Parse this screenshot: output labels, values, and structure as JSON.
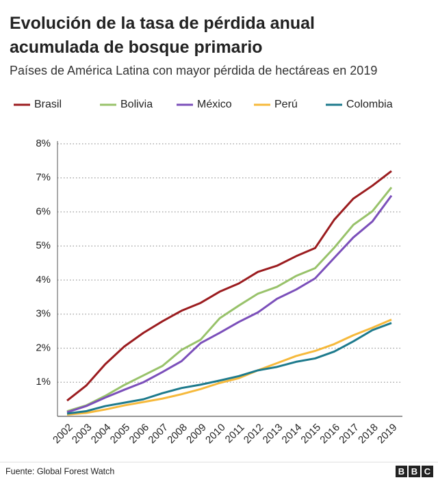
{
  "chart_data": {
    "type": "line",
    "title": "Evolución de la tasa de pérdida anual acumulada de bosque primario",
    "subtitle": "Países de América Latina con mayor pérdida de hectáreas en 2019",
    "categories": [
      "2002",
      "2003",
      "2004",
      "2005",
      "2006",
      "2007",
      "2008",
      "2009",
      "2010",
      "2011",
      "2012",
      "2013",
      "2014",
      "2015",
      "2016",
      "2017",
      "2018",
      "2019"
    ],
    "series": [
      {
        "name": "Brasil",
        "color": "#9b1c1f",
        "values": [
          0.46,
          0.9,
          1.53,
          2.05,
          2.45,
          2.79,
          3.1,
          3.33,
          3.66,
          3.9,
          4.24,
          4.42,
          4.7,
          4.94,
          5.77,
          6.39,
          6.77,
          7.2
        ]
      },
      {
        "name": "Bolivia",
        "color": "#98c26a",
        "values": [
          0.15,
          0.32,
          0.6,
          0.92,
          1.2,
          1.48,
          1.95,
          2.25,
          2.88,
          3.25,
          3.6,
          3.8,
          4.12,
          4.35,
          4.95,
          5.62,
          6.02,
          6.72
        ]
      },
      {
        "name": "México",
        "color": "#7b4fba",
        "values": [
          0.12,
          0.3,
          0.55,
          0.78,
          1.0,
          1.3,
          1.62,
          2.15,
          2.45,
          2.77,
          3.05,
          3.45,
          3.72,
          4.05,
          4.65,
          5.25,
          5.72,
          6.48
        ]
      },
      {
        "name": "Perú",
        "color": "#f6b93b",
        "values": [
          0.05,
          0.1,
          0.2,
          0.32,
          0.42,
          0.52,
          0.65,
          0.8,
          0.98,
          1.12,
          1.35,
          1.56,
          1.77,
          1.92,
          2.12,
          2.38,
          2.6,
          2.84
        ]
      },
      {
        "name": "Colombia",
        "color": "#1d7a8c",
        "values": [
          0.08,
          0.15,
          0.3,
          0.4,
          0.5,
          0.68,
          0.83,
          0.93,
          1.05,
          1.18,
          1.35,
          1.45,
          1.6,
          1.7,
          1.9,
          2.2,
          2.53,
          2.74
        ]
      }
    ],
    "ylim": [
      0,
      8
    ],
    "yticks": [
      {
        "value": 1,
        "label": "1%"
      },
      {
        "value": 2,
        "label": "2%"
      },
      {
        "value": 3,
        "label": "3%"
      },
      {
        "value": 4,
        "label": "4%"
      },
      {
        "value": 5,
        "label": "5%"
      },
      {
        "value": 6,
        "label": "6%"
      },
      {
        "value": 7,
        "label": "7%"
      },
      {
        "value": 8,
        "label": "8%"
      }
    ],
    "grid": true,
    "source": "Fuente: Global Forest Watch",
    "logo": [
      "B",
      "B",
      "C"
    ]
  }
}
